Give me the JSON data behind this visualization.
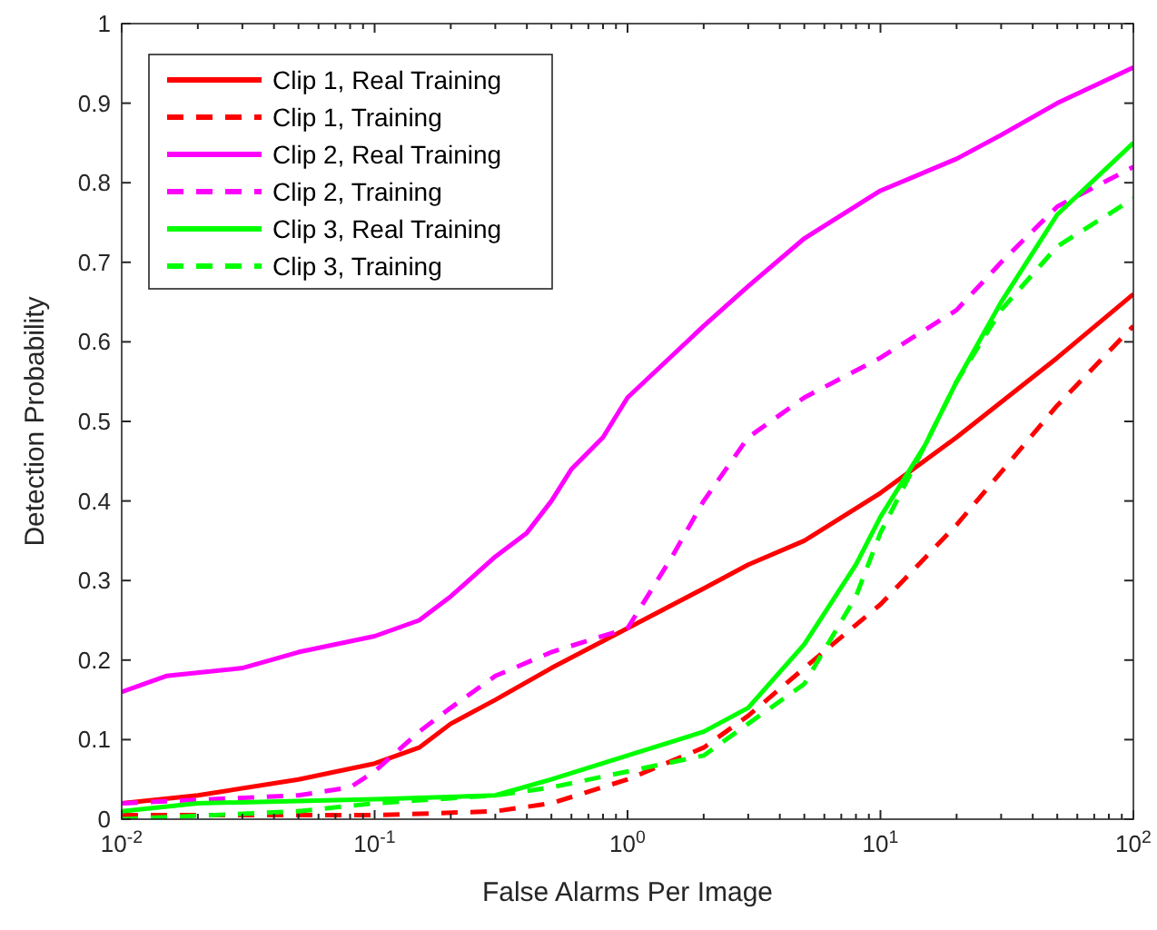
{
  "chart_data": {
    "type": "line",
    "xlabel": "False Alarms Per Image",
    "ylabel": "Detection Probability",
    "log": "x",
    "xlim": [
      0.01,
      100
    ],
    "ylim": [
      0,
      1
    ],
    "xticks": [
      {
        "value": 0.01,
        "label": "10$^{-2}$"
      },
      {
        "value": 0.02,
        "label": null
      },
      {
        "value": 0.03,
        "label": null
      },
      {
        "value": 0.04,
        "label": null
      },
      {
        "value": 0.05,
        "label": null
      },
      {
        "value": 0.06,
        "label": null
      },
      {
        "value": 0.07,
        "label": null
      },
      {
        "value": 0.08,
        "label": null
      },
      {
        "value": 0.09,
        "label": null
      },
      {
        "value": 0.1,
        "label": "10$^{-1}$"
      },
      {
        "value": 0.2,
        "label": null
      },
      {
        "value": 0.3,
        "label": null
      },
      {
        "value": 0.4,
        "label": null
      },
      {
        "value": 0.5,
        "label": null
      },
      {
        "value": 0.6,
        "label": null
      },
      {
        "value": 0.7,
        "label": null
      },
      {
        "value": 0.8,
        "label": null
      },
      {
        "value": 0.9,
        "label": null
      },
      {
        "value": 1,
        "label": "10$^{0}$"
      },
      {
        "value": 2,
        "label": null
      },
      {
        "value": 3,
        "label": null
      },
      {
        "value": 4,
        "label": null
      },
      {
        "value": 5,
        "label": null
      },
      {
        "value": 6,
        "label": null
      },
      {
        "value": 7,
        "label": null
      },
      {
        "value": 8,
        "label": null
      },
      {
        "value": 9,
        "label": null
      },
      {
        "value": 10,
        "label": "10$^{1}$"
      },
      {
        "value": 20,
        "label": null
      },
      {
        "value": 30,
        "label": null
      },
      {
        "value": 40,
        "label": null
      },
      {
        "value": 50,
        "label": null
      },
      {
        "value": 60,
        "label": null
      },
      {
        "value": 70,
        "label": null
      },
      {
        "value": 80,
        "label": null
      },
      {
        "value": 90,
        "label": null
      },
      {
        "value": 100,
        "label": "10$^{2}$"
      }
    ],
    "yticks": [
      0,
      0.1,
      0.2,
      0.3,
      0.4,
      0.5,
      0.6,
      0.7,
      0.8,
      0.9,
      1
    ],
    "grid": false,
    "legend": "top left",
    "marker": "none",
    "series": [
      {
        "name": "Clip 1, Real Training",
        "color": "#ff0000",
        "line_style": "solid",
        "x": [
          0.01,
          0.02,
          0.05,
          0.1,
          0.15,
          0.2,
          0.3,
          0.5,
          1,
          2,
          3,
          5,
          10,
          20,
          50,
          100
        ],
        "values": [
          0.02,
          0.03,
          0.05,
          0.07,
          0.09,
          0.12,
          0.15,
          0.19,
          0.24,
          0.29,
          0.32,
          0.35,
          0.41,
          0.48,
          0.58,
          0.66
        ]
      },
      {
        "name": "Clip 1, Training",
        "color": "#ff0000",
        "line_style": "dashed",
        "x": [
          0.01,
          0.1,
          0.3,
          0.5,
          1,
          2,
          3,
          5,
          10,
          20,
          50,
          100
        ],
        "values": [
          0.005,
          0.005,
          0.01,
          0.02,
          0.05,
          0.09,
          0.13,
          0.19,
          0.27,
          0.37,
          0.52,
          0.62
        ]
      },
      {
        "name": "Clip 2, Real Training",
        "color": "#ff00ff",
        "line_style": "solid",
        "x": [
          0.01,
          0.015,
          0.03,
          0.05,
          0.1,
          0.15,
          0.2,
          0.3,
          0.4,
          0.5,
          0.6,
          0.8,
          1,
          2,
          3,
          5,
          10,
          20,
          30,
          50,
          100
        ],
        "values": [
          0.16,
          0.18,
          0.19,
          0.21,
          0.23,
          0.25,
          0.28,
          0.33,
          0.36,
          0.4,
          0.44,
          0.48,
          0.53,
          0.62,
          0.67,
          0.73,
          0.79,
          0.83,
          0.86,
          0.9,
          0.945
        ]
      },
      {
        "name": "Clip 2, Training",
        "color": "#ff00ff",
        "line_style": "dashed",
        "x": [
          0.01,
          0.05,
          0.08,
          0.1,
          0.15,
          0.2,
          0.3,
          0.5,
          1,
          1.5,
          2,
          3,
          5,
          10,
          20,
          30,
          50,
          100
        ],
        "values": [
          0.02,
          0.03,
          0.04,
          0.06,
          0.11,
          0.14,
          0.18,
          0.21,
          0.24,
          0.33,
          0.4,
          0.48,
          0.53,
          0.58,
          0.64,
          0.7,
          0.77,
          0.82
        ]
      },
      {
        "name": "Clip 3, Real Training",
        "color": "#00ff00",
        "line_style": "solid",
        "x": [
          0.01,
          0.02,
          0.1,
          0.3,
          0.5,
          1,
          2,
          3,
          5,
          8,
          10,
          15,
          20,
          30,
          50,
          100
        ],
        "values": [
          0.01,
          0.02,
          0.025,
          0.03,
          0.05,
          0.08,
          0.11,
          0.14,
          0.22,
          0.32,
          0.38,
          0.47,
          0.55,
          0.65,
          0.76,
          0.85
        ]
      },
      {
        "name": "Clip 3, Training",
        "color": "#00ff00",
        "line_style": "dashed",
        "x": [
          0.01,
          0.05,
          0.1,
          0.3,
          0.5,
          1,
          2,
          3,
          5,
          8,
          10,
          15,
          20,
          30,
          50,
          100
        ],
        "values": [
          0.0,
          0.01,
          0.02,
          0.03,
          0.04,
          0.06,
          0.08,
          0.12,
          0.17,
          0.28,
          0.36,
          0.47,
          0.55,
          0.64,
          0.72,
          0.78
        ]
      }
    ]
  }
}
